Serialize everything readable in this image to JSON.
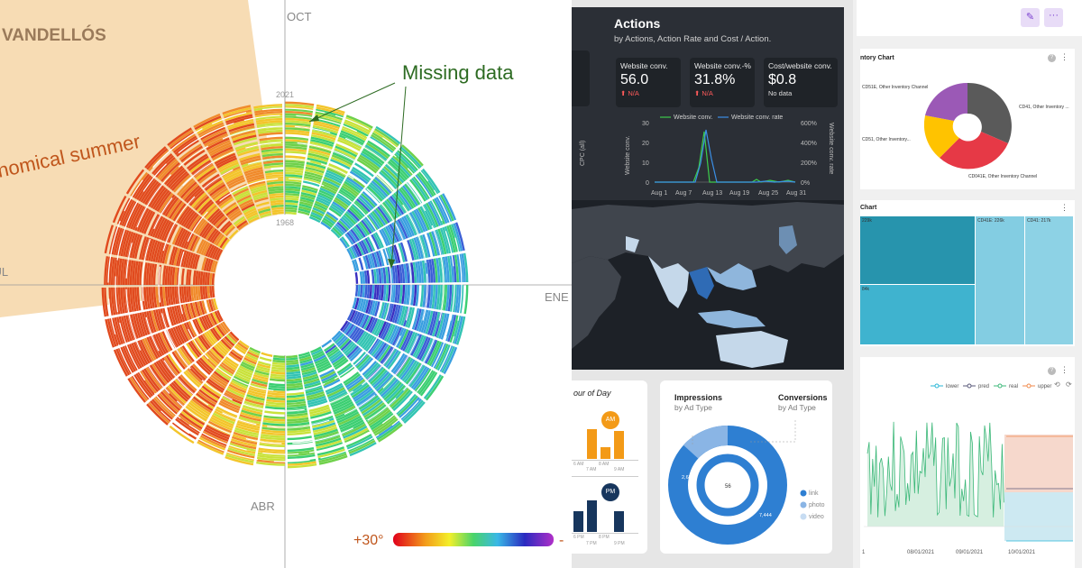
{
  "left": {
    "place_label": "VANDELLÓS",
    "season_label": "Astronomical summer",
    "months": {
      "top": "OCT",
      "right": "ENE",
      "bottom": "ABR",
      "left": "JUL"
    },
    "years": {
      "outer": "2021",
      "inner": "1968"
    },
    "annotation": "Missing data",
    "legend_hot": "+30°",
    "legend_cold": "-",
    "colors": {
      "season": "#f7dcb4",
      "season_text": "#c0561c",
      "annotation": "#2d6b22"
    }
  },
  "middle": {
    "title": "Actions",
    "subtitle": "by Actions, Action Rate and Cost / Action.",
    "kpis": [
      {
        "label": "Website conv.",
        "value": "56.0",
        "sub": "⬆ N/A"
      },
      {
        "label": "Website conv.-%",
        "value": "31.8%",
        "sub": "⬆ N/A"
      },
      {
        "label": "Cost/website conv.",
        "value": "$0.8",
        "sub": "No data"
      }
    ],
    "chart": {
      "legend": [
        "Website conv.",
        "Website conv. rate"
      ],
      "y_left": [
        "30",
        "20",
        "10",
        "0"
      ],
      "y_right": [
        "600%",
        "400%",
        "200%",
        "0%"
      ],
      "x": [
        "Aug 1",
        "Aug 7",
        "Aug 13",
        "Aug 19",
        "Aug 25",
        "Aug 31"
      ],
      "y_left_title": "Website conv.",
      "y_right_title": "Website conv. rate",
      "side_label": "CPC (all)"
    },
    "hour_card": {
      "title": "our of Day",
      "am_badge": "AM",
      "pm_badge": "PM",
      "am_ticks": [
        "6 AM",
        "7 AM",
        "8 AM",
        "9 AM"
      ],
      "pm_ticks": [
        "6 PM",
        "7 PM",
        "8 PM",
        "9 PM"
      ]
    },
    "donut_card": {
      "impressions_title": "Impressions",
      "impressions_sub": "by Ad Type",
      "conversions_title": "Conversions",
      "conversions_sub": "by Ad Type",
      "center": "56",
      "val_small": "2,684",
      "val_big": "7,444",
      "legend": [
        "link",
        "photo",
        "video"
      ]
    }
  },
  "right": {
    "donut_title": "ntory Chart",
    "donut_labels": [
      "CD51E, Other Inventory Channel",
      "CD41, Other Inventory ...",
      "CD51, Other Inventory...",
      "CD041E, Other Inventory Channel"
    ],
    "treemap_title": "Chart",
    "treemap_labels": [
      "229k",
      "CD41E: 226k",
      "CD41: 217k",
      "84k"
    ],
    "line_legend": [
      "lower",
      "pred",
      "real",
      "upper"
    ],
    "line_x": [
      "1",
      "08/01/2021",
      "09/01/2021",
      "10/01/2021"
    ]
  }
}
